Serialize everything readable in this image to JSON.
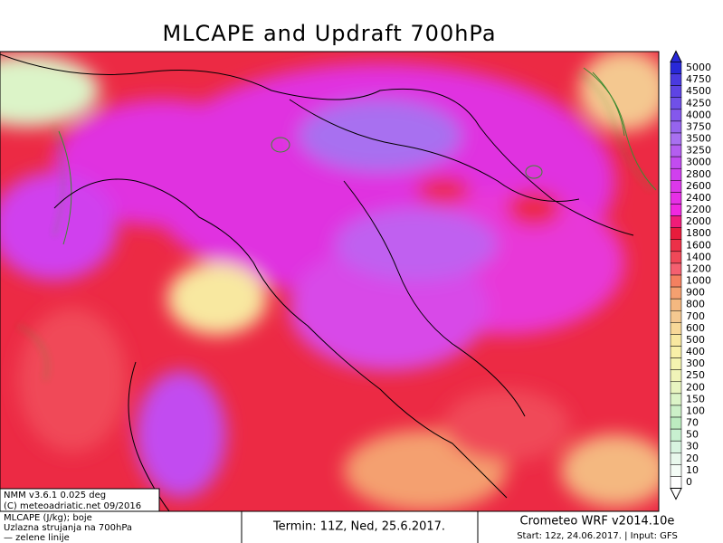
{
  "header": {
    "title": "MLCAPE and Updraft 700hPa"
  },
  "colorbar": {
    "levels": [
      5000,
      4750,
      4500,
      4250,
      4000,
      3750,
      3500,
      3250,
      3000,
      2800,
      2600,
      2400,
      2200,
      2000,
      1800,
      1600,
      1400,
      1200,
      1000,
      900,
      800,
      700,
      600,
      500,
      400,
      300,
      250,
      200,
      150,
      100,
      70,
      50,
      30,
      20,
      10,
      0
    ],
    "colors": [
      "#2828d8",
      "#4a3ae0",
      "#5e44e4",
      "#7050e8",
      "#8458ec",
      "#9664ee",
      "#a870f0",
      "#b45ef0",
      "#c24cf0",
      "#d040ee",
      "#dc38ea",
      "#e630e6",
      "#f028e0",
      "#f01c78",
      "#e81c3c",
      "#ec3048",
      "#f04858",
      "#f46070",
      "#f48060",
      "#f4a070",
      "#f4b880",
      "#f4c890",
      "#f8d898",
      "#f8e8a0",
      "#f8f0a8",
      "#f4f4b0",
      "#f0f4b8",
      "#e8f4c0",
      "#dcf4c8",
      "#ccf0c8",
      "#bcecc0",
      "#c8f0d0",
      "#d8f4e0",
      "#e8f8ec",
      "#f4fcf6",
      "#ffffff"
    ]
  },
  "info_box": {
    "lines": [
      "NMM v3.6.1 0.025 deg",
      "(C) meteoadriatic.net 09/2016"
    ]
  },
  "footer": {
    "legend_lines": [
      "MLCAPE (J/kg); boje",
      "Uzlazna strujanja na 700hPa",
      "— zelene linije"
    ],
    "run_time": "Termin: 11Z, Ned, 25.6.2017.",
    "model": "Crometeo WRF v2014.10e",
    "model_info": "Start: 12z, 24.06.2017. | Input: GFS"
  }
}
